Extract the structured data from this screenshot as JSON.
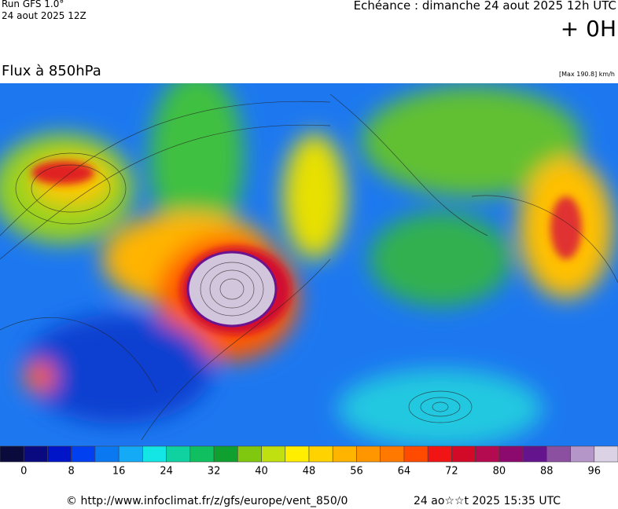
{
  "header": {
    "run": "Run GFS 1.0°",
    "run_date": "24 aout 2025 12Z",
    "valid": "Echéance : dimanche 24 aout 2025 12h UTC",
    "lead": "+ 0H"
  },
  "map": {
    "title": "Flux à 850hPa",
    "max_label": "[Max 190.8] km/h"
  },
  "colorbar": {
    "step": 4,
    "colors": [
      "#0a0a3c",
      "#0a0a80",
      "#0014c8",
      "#0040f0",
      "#0a78f0",
      "#14aaf5",
      "#14e6e6",
      "#10d2a0",
      "#10c060",
      "#10a030",
      "#80c810",
      "#c0e010",
      "#ffee00",
      "#ffd200",
      "#ffb400",
      "#ff9600",
      "#ff7800",
      "#ff4b00",
      "#f01414",
      "#d20a28",
      "#b40a50",
      "#8c0a6e",
      "#64148c",
      "#8c50a0",
      "#b496c8",
      "#dcd2e6"
    ],
    "ticks": [
      0,
      8,
      16,
      24,
      32,
      40,
      48,
      56,
      64,
      72,
      80,
      88,
      96
    ]
  },
  "footer": {
    "source": "© http://www.infoclimat.fr/z/gfs/europe/vent_850/0",
    "generated": "24 ao☆☆t 2025 15:35 UTC"
  }
}
